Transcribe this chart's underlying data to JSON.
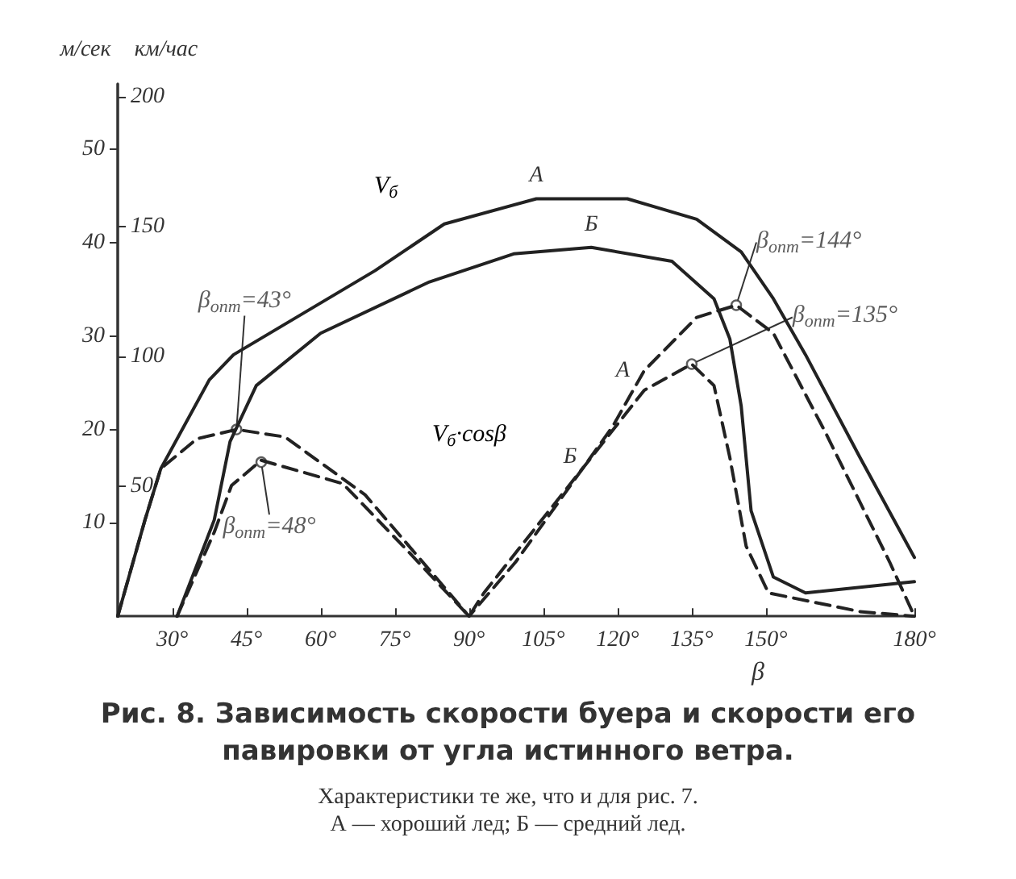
{
  "chart_data": {
    "type": "line",
    "title": "Рис. 8. Зависимость скорости буера и скорости его павировки от угла истинного ветра.",
    "subtitle": "Характеристики те же, что и для рис. 7.\nА — хороший лед; Б — средний лед.",
    "xlabel": "β",
    "ylabel": "м/сек",
    "y2label": "км/час",
    "annotations": [
      "V$_{б}$",
      "V$_{б}$·cosβ",
      {
        "text": "β$_{опт}$=43°",
        "x": 43,
        "y": 20
      },
      {
        "text": "β$_{опт}$=48°",
        "x": 48,
        "y": 16.5
      },
      {
        "text": "β$_{опт}$=144°",
        "x": 144,
        "y": 33.3
      },
      {
        "text": "β$_{опт}$=135°",
        "x": 135,
        "y": 27
      }
    ],
    "xlim": [
      19,
      180
    ],
    "ylim": [
      0,
      57
    ],
    "y2lim": [
      0,
      205
    ],
    "xticks": [
      {
        "value": 30,
        "label": "30°"
      },
      {
        "value": 45,
        "label": "45°"
      },
      {
        "value": 60,
        "label": "60°"
      },
      {
        "value": 75,
        "label": "75°"
      },
      {
        "value": 90,
        "label": "90°"
      },
      {
        "value": 105,
        "label": "105°"
      },
      {
        "value": 120,
        "label": "120°"
      },
      {
        "value": 135,
        "label": "135°"
      },
      {
        "value": 150,
        "label": "150°"
      },
      {
        "value": 180,
        "label": "180°"
      }
    ],
    "yticks": [
      10,
      20,
      30,
      40,
      50
    ],
    "y2ticks": [
      50,
      100,
      150,
      200
    ],
    "grid": false,
    "legend": false,
    "marker": "none",
    "series": [
      {
        "name": "А",
        "color": "#222222",
        "line_style": "solid",
        "x": [
          19,
          24.5,
          27.7,
          37.5,
          42.4,
          71,
          85,
          103.6,
          122,
          136,
          145,
          151.5,
          158,
          169,
          180
        ],
        "values": [
          0,
          10.3,
          15.8,
          25.3,
          28,
          37,
          42,
          44.7,
          44.7,
          42.5,
          39,
          34,
          28,
          17,
          6.3
        ]
      },
      {
        "name": "Б",
        "color": "#222222",
        "line_style": "solid",
        "x": [
          31,
          38.5,
          41.7,
          47,
          60,
          82,
          99,
          114.7,
          131,
          139.5,
          142.7,
          145,
          147,
          151.5,
          158,
          180
        ],
        "values": [
          0,
          10.3,
          18.7,
          24.7,
          30.3,
          35.8,
          38.8,
          39.5,
          38,
          34,
          29.7,
          22.5,
          11.3,
          4.2,
          2.5,
          3.7
        ]
      },
      {
        "name": "А",
        "color": "#222222",
        "line_style": "dashed",
        "x": [
          19,
          24.5,
          27.7,
          35,
          43,
          52.8,
          69,
          90,
          99.4,
          119,
          125.4,
          136,
          144,
          151.5,
          162,
          175,
          180
        ],
        "values": [
          0,
          10.3,
          15.8,
          19,
          20,
          19.2,
          13,
          0,
          5.8,
          20.3,
          26.3,
          32,
          33.3,
          30.3,
          19.7,
          5.8,
          0
        ]
      },
      {
        "name": "Б",
        "color": "#222222",
        "line_style": "dashed",
        "x": [
          31,
          38.5,
          42,
          48,
          64.5,
          77.6,
          90,
          93,
          114.7,
          125.4,
          135,
          139.5,
          142.7,
          146,
          150.5,
          169,
          180
        ],
        "values": [
          0,
          9,
          14,
          16.7,
          14.2,
          7,
          0,
          2.5,
          17,
          24.2,
          27,
          24.7,
          17,
          7.5,
          2.5,
          0.5,
          0
        ]
      }
    ]
  }
}
